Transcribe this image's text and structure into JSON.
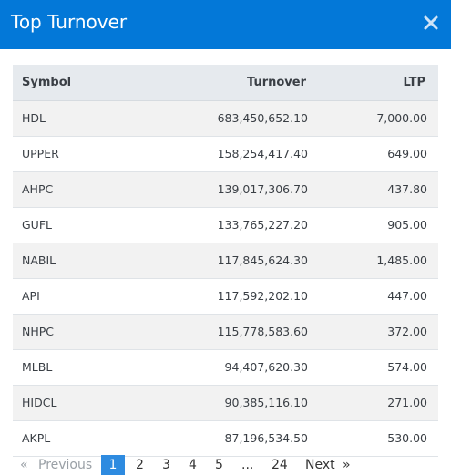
{
  "dialog": {
    "title": "Top Turnover"
  },
  "icons": {
    "close": "close-icon"
  },
  "table": {
    "headers": {
      "symbol": "Symbol",
      "turnover": "Turnover",
      "ltp": "LTP"
    },
    "rows": [
      {
        "symbol": "HDL",
        "turnover": "683,450,652.10",
        "ltp": "7,000.00"
      },
      {
        "symbol": "UPPER",
        "turnover": "158,254,417.40",
        "ltp": "649.00"
      },
      {
        "symbol": "AHPC",
        "turnover": "139,017,306.70",
        "ltp": "437.80"
      },
      {
        "symbol": "GUFL",
        "turnover": "133,765,227.20",
        "ltp": "905.00"
      },
      {
        "symbol": "NABIL",
        "turnover": "117,845,624.30",
        "ltp": "1,485.00"
      },
      {
        "symbol": "API",
        "turnover": "117,592,202.10",
        "ltp": "447.00"
      },
      {
        "symbol": "NHPC",
        "turnover": "115,778,583.60",
        "ltp": "372.00"
      },
      {
        "symbol": "MLBL",
        "turnover": "94,407,620.30",
        "ltp": "574.00"
      },
      {
        "symbol": "HIDCL",
        "turnover": "90,385,116.10",
        "ltp": "271.00"
      },
      {
        "symbol": "AKPL",
        "turnover": "87,196,534.50",
        "ltp": "530.00"
      }
    ]
  },
  "pagination": {
    "first": "«",
    "previous": "Previous",
    "pages": [
      "1",
      "2",
      "3",
      "4",
      "5"
    ],
    "ellipsis": "...",
    "last_page": "24",
    "next": "Next",
    "end": "»",
    "current": "1"
  }
}
